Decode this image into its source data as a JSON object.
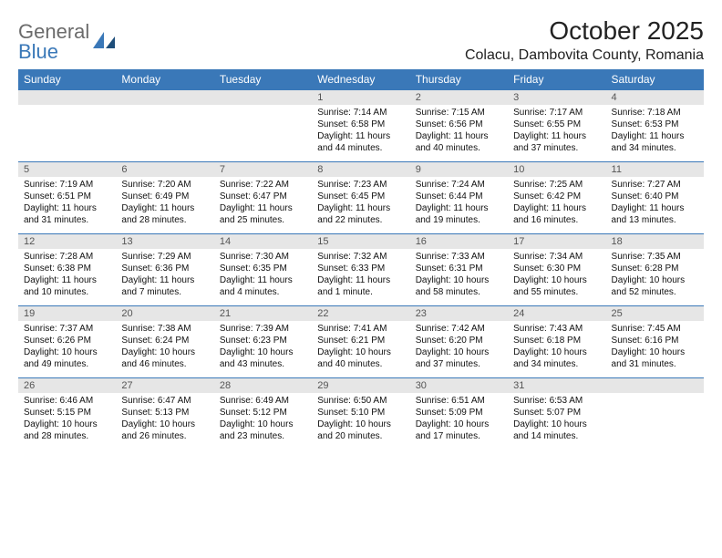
{
  "logo": {
    "text1": "General",
    "text2": "Blue"
  },
  "title": "October 2025",
  "location": "Colacu, Dambovita County, Romania",
  "colors": {
    "accent": "#3a78b8",
    "dayHeaderBg": "#e6e6e6",
    "text": "#111111",
    "background": "#ffffff"
  },
  "daysOfWeek": [
    "Sunday",
    "Monday",
    "Tuesday",
    "Wednesday",
    "Thursday",
    "Friday",
    "Saturday"
  ],
  "calendar": {
    "type": "table",
    "firstDayOffset": 3,
    "daysInMonth": 31,
    "cells": [
      {
        "day": 1,
        "sunrise": "7:14 AM",
        "sunset": "6:58 PM",
        "daylight": "11 hours and 44 minutes."
      },
      {
        "day": 2,
        "sunrise": "7:15 AM",
        "sunset": "6:56 PM",
        "daylight": "11 hours and 40 minutes."
      },
      {
        "day": 3,
        "sunrise": "7:17 AM",
        "sunset": "6:55 PM",
        "daylight": "11 hours and 37 minutes."
      },
      {
        "day": 4,
        "sunrise": "7:18 AM",
        "sunset": "6:53 PM",
        "daylight": "11 hours and 34 minutes."
      },
      {
        "day": 5,
        "sunrise": "7:19 AM",
        "sunset": "6:51 PM",
        "daylight": "11 hours and 31 minutes."
      },
      {
        "day": 6,
        "sunrise": "7:20 AM",
        "sunset": "6:49 PM",
        "daylight": "11 hours and 28 minutes."
      },
      {
        "day": 7,
        "sunrise": "7:22 AM",
        "sunset": "6:47 PM",
        "daylight": "11 hours and 25 minutes."
      },
      {
        "day": 8,
        "sunrise": "7:23 AM",
        "sunset": "6:45 PM",
        "daylight": "11 hours and 22 minutes."
      },
      {
        "day": 9,
        "sunrise": "7:24 AM",
        "sunset": "6:44 PM",
        "daylight": "11 hours and 19 minutes."
      },
      {
        "day": 10,
        "sunrise": "7:25 AM",
        "sunset": "6:42 PM",
        "daylight": "11 hours and 16 minutes."
      },
      {
        "day": 11,
        "sunrise": "7:27 AM",
        "sunset": "6:40 PM",
        "daylight": "11 hours and 13 minutes."
      },
      {
        "day": 12,
        "sunrise": "7:28 AM",
        "sunset": "6:38 PM",
        "daylight": "11 hours and 10 minutes."
      },
      {
        "day": 13,
        "sunrise": "7:29 AM",
        "sunset": "6:36 PM",
        "daylight": "11 hours and 7 minutes."
      },
      {
        "day": 14,
        "sunrise": "7:30 AM",
        "sunset": "6:35 PM",
        "daylight": "11 hours and 4 minutes."
      },
      {
        "day": 15,
        "sunrise": "7:32 AM",
        "sunset": "6:33 PM",
        "daylight": "11 hours and 1 minute."
      },
      {
        "day": 16,
        "sunrise": "7:33 AM",
        "sunset": "6:31 PM",
        "daylight": "10 hours and 58 minutes."
      },
      {
        "day": 17,
        "sunrise": "7:34 AM",
        "sunset": "6:30 PM",
        "daylight": "10 hours and 55 minutes."
      },
      {
        "day": 18,
        "sunrise": "7:35 AM",
        "sunset": "6:28 PM",
        "daylight": "10 hours and 52 minutes."
      },
      {
        "day": 19,
        "sunrise": "7:37 AM",
        "sunset": "6:26 PM",
        "daylight": "10 hours and 49 minutes."
      },
      {
        "day": 20,
        "sunrise": "7:38 AM",
        "sunset": "6:24 PM",
        "daylight": "10 hours and 46 minutes."
      },
      {
        "day": 21,
        "sunrise": "7:39 AM",
        "sunset": "6:23 PM",
        "daylight": "10 hours and 43 minutes."
      },
      {
        "day": 22,
        "sunrise": "7:41 AM",
        "sunset": "6:21 PM",
        "daylight": "10 hours and 40 minutes."
      },
      {
        "day": 23,
        "sunrise": "7:42 AM",
        "sunset": "6:20 PM",
        "daylight": "10 hours and 37 minutes."
      },
      {
        "day": 24,
        "sunrise": "7:43 AM",
        "sunset": "6:18 PM",
        "daylight": "10 hours and 34 minutes."
      },
      {
        "day": 25,
        "sunrise": "7:45 AM",
        "sunset": "6:16 PM",
        "daylight": "10 hours and 31 minutes."
      },
      {
        "day": 26,
        "sunrise": "6:46 AM",
        "sunset": "5:15 PM",
        "daylight": "10 hours and 28 minutes."
      },
      {
        "day": 27,
        "sunrise": "6:47 AM",
        "sunset": "5:13 PM",
        "daylight": "10 hours and 26 minutes."
      },
      {
        "day": 28,
        "sunrise": "6:49 AM",
        "sunset": "5:12 PM",
        "daylight": "10 hours and 23 minutes."
      },
      {
        "day": 29,
        "sunrise": "6:50 AM",
        "sunset": "5:10 PM",
        "daylight": "10 hours and 20 minutes."
      },
      {
        "day": 30,
        "sunrise": "6:51 AM",
        "sunset": "5:09 PM",
        "daylight": "10 hours and 17 minutes."
      },
      {
        "day": 31,
        "sunrise": "6:53 AM",
        "sunset": "5:07 PM",
        "daylight": "10 hours and 14 minutes."
      }
    ]
  },
  "labels": {
    "sunrise": "Sunrise:",
    "sunset": "Sunset:",
    "daylight": "Daylight:"
  }
}
